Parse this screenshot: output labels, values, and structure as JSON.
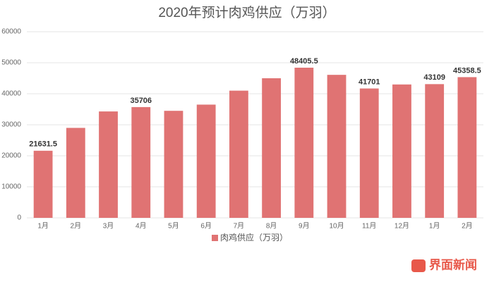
{
  "chart_data": {
    "type": "bar",
    "title": "2020年预计肉鸡供应（万羽）",
    "categories": [
      "1月",
      "2月",
      "3月",
      "4月",
      "5月",
      "6月",
      "7月",
      "8月",
      "9月",
      "10月",
      "11月",
      "12月",
      "1月",
      "2月"
    ],
    "series": [
      {
        "name": "肉鸡供应（万羽）",
        "color": "#e07373",
        "values": [
          21631.5,
          29000,
          34300,
          35706,
          34500,
          36500,
          41000,
          45000,
          48405.5,
          46100,
          41701,
          43000,
          43109,
          45358.5
        ],
        "value_labels": [
          "21631.5",
          null,
          null,
          "35706",
          null,
          null,
          null,
          null,
          "48405.5",
          null,
          "41701",
          null,
          "43109",
          "45358.5"
        ]
      }
    ],
    "ylim": [
      0,
      60000
    ],
    "yticks": [
      0,
      10000,
      20000,
      30000,
      40000,
      50000,
      60000
    ],
    "grid": true,
    "watermark": "界面新闻"
  }
}
